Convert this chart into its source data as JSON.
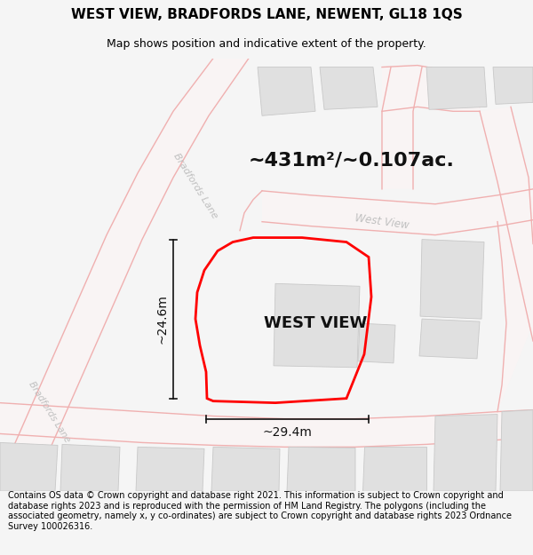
{
  "title": "WEST VIEW, BRADFORDS LANE, NEWENT, GL18 1QS",
  "subtitle": "Map shows position and indicative extent of the property.",
  "footer": "Contains OS data © Crown copyright and database right 2021. This information is subject to Crown copyright and database rights 2023 and is reproduced with the permission of HM Land Registry. The polygons (including the associated geometry, namely x, y co-ordinates) are subject to Crown copyright and database rights 2023 Ordnance Survey 100026316.",
  "area_text": "~431m²/~0.107ac.",
  "property_label": "WEST VIEW",
  "dim_width": "~29.4m",
  "dim_height": "~24.6m",
  "bg_color": "#f5f5f5",
  "map_bg": "#ffffff",
  "road_stroke": "#f0b0b0",
  "road_fill": "#f7f7f7",
  "building_color": "#e0e0e0",
  "building_outline": "#c8c8c8",
  "plot_color": "#ff0000",
  "dim_color": "#111111",
  "road_label_color": "#c0c0c0",
  "title_fontsize": 11,
  "subtitle_fontsize": 9,
  "footer_fontsize": 7,
  "area_fontsize": 16,
  "label_fontsize": 13,
  "dim_fontsize": 10
}
